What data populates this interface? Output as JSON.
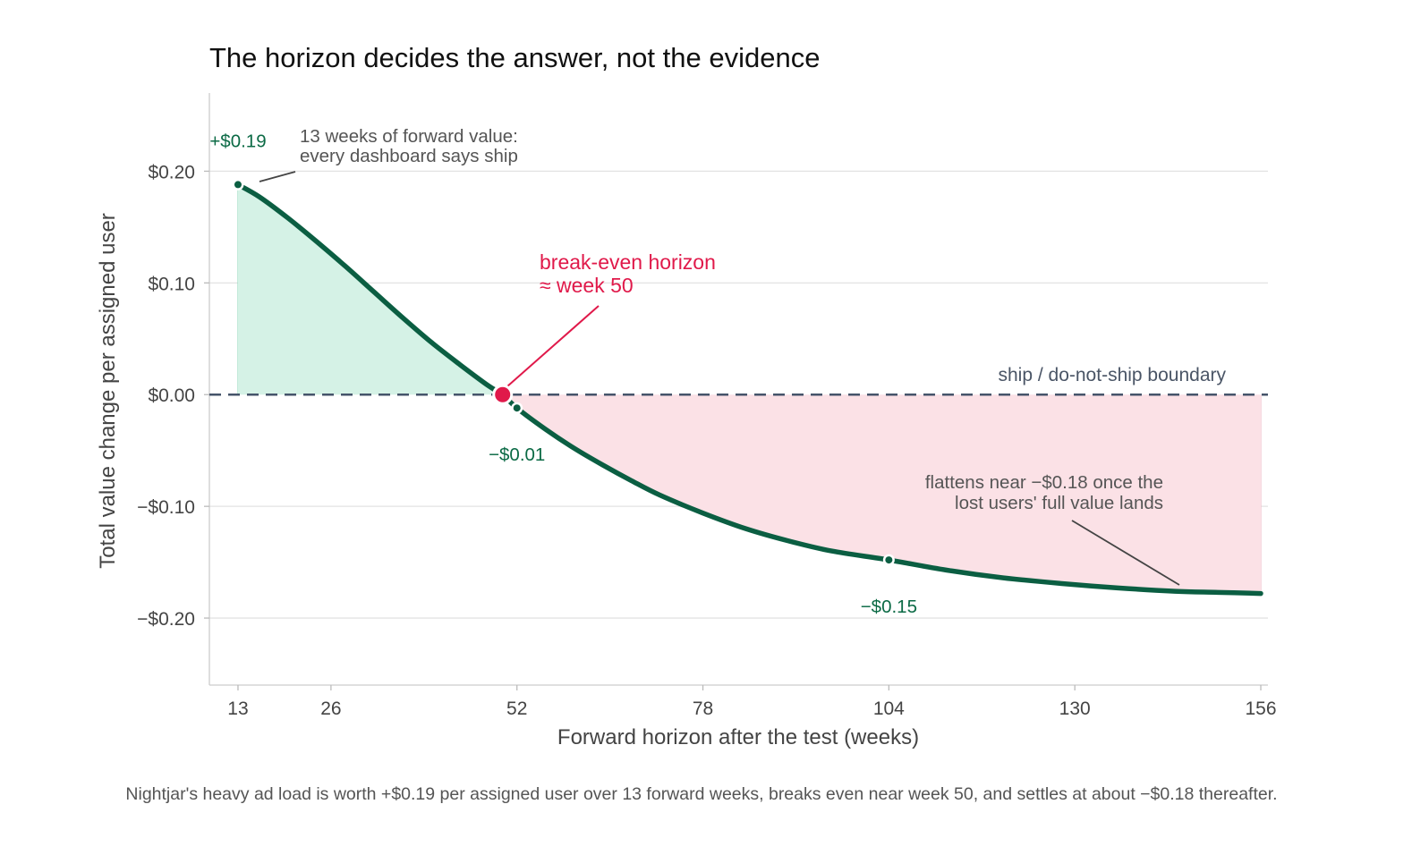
{
  "chart_data": {
    "type": "line",
    "title": "The horizon decides the answer, not the evidence",
    "xlabel": "Forward horizon after the test (weeks)",
    "ylabel": "Total value change per assigned user",
    "xlim": [
      9,
      157
    ],
    "ylim": [
      -0.26,
      0.27
    ],
    "x_ticks": [
      13,
      26,
      52,
      78,
      104,
      130,
      156
    ],
    "y_ticks": [
      0.2,
      0.1,
      0.0,
      -0.1,
      -0.2
    ],
    "y_tick_labels": [
      "$0.20",
      "$0.10",
      "$0.00",
      "−$0.10",
      "−$0.20"
    ],
    "grid": "horizontal",
    "series": [
      {
        "x": [
          13,
          16,
          20,
          24,
          28,
          32,
          36,
          40,
          44,
          48,
          50,
          52,
          56,
          60,
          64,
          68,
          72,
          78,
          84,
          90,
          96,
          104,
          112,
          120,
          128,
          136,
          144,
          150,
          156
        ],
        "values": [
          0.188,
          0.177,
          0.158,
          0.137,
          0.115,
          0.092,
          0.069,
          0.047,
          0.027,
          0.008,
          0.0,
          -0.012,
          -0.031,
          -0.048,
          -0.063,
          -0.077,
          -0.09,
          -0.106,
          -0.12,
          -0.131,
          -0.14,
          -0.148,
          -0.157,
          -0.164,
          -0.169,
          -0.173,
          -0.176,
          -0.177,
          -0.178
        ]
      }
    ],
    "highlighted_points": [
      {
        "x": 13,
        "y": 0.188,
        "label": "+$0.19"
      },
      {
        "x": 52,
        "y": -0.012,
        "label": "−$0.01"
      },
      {
        "x": 104,
        "y": -0.148,
        "label": "−$0.15"
      }
    ],
    "break_even": {
      "x": 50,
      "y": 0.0
    },
    "reference_line": {
      "y": 0.0,
      "label": "ship / do-not-ship boundary"
    },
    "annotations": {
      "start_line1": "13 weeks of forward value:",
      "start_line2": "every dashboard says ship",
      "break_even_line1": "break-even horizon",
      "break_even_line2": "≈ week 50",
      "tail_line1": "flattens near −$0.18 once the",
      "tail_line2": "lost users' full value lands"
    },
    "colors": {
      "line": "#0b5e42",
      "positive_fill": "#d5f2e6",
      "negative_fill": "#fbe1e6",
      "break_even": "#e0194a",
      "boundary": "#45546a",
      "grid": "#e3e3e3"
    },
    "caption": "Nightjar's heavy ad load is worth +$0.19 per assigned user over 13 forward weeks, breaks even near week 50, and settles at about −$0.18 thereafter."
  }
}
